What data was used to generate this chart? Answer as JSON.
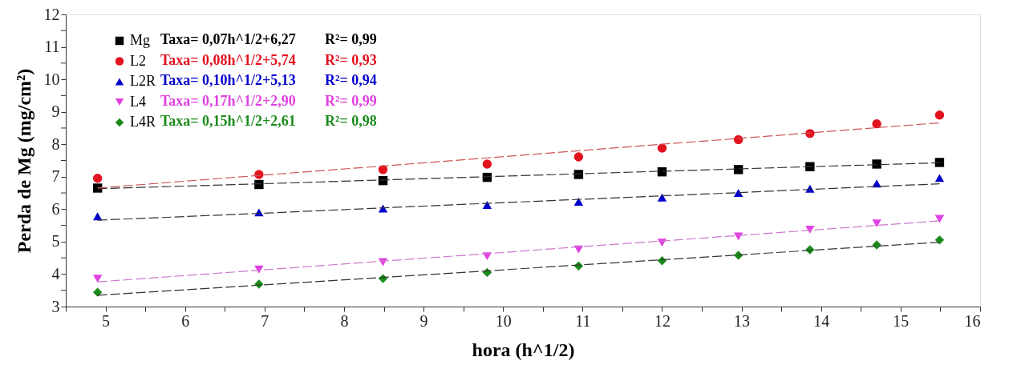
{
  "chart_data": {
    "type": "scatter",
    "xlabel": "hora (h^1/2)",
    "ylabel": "Perda de Mg (mg/cm²)",
    "x": [
      4.9,
      6.93,
      8.49,
      9.8,
      10.95,
      12.0,
      12.96,
      13.86,
      14.7,
      15.49
    ],
    "xlim": [
      4.5,
      16
    ],
    "ylim": [
      3,
      12
    ],
    "xticks": [
      {
        "value": 4.5,
        "label": null
      },
      5,
      {
        "value": 5.5,
        "label": null
      },
      6,
      {
        "value": 6.5,
        "label": null
      },
      7,
      {
        "value": 7.5,
        "label": null
      },
      8,
      {
        "value": 8.5,
        "label": null
      },
      9,
      {
        "value": 9.5,
        "label": null
      },
      10,
      {
        "value": 10.5,
        "label": null
      },
      11,
      {
        "value": 11.5,
        "label": null
      },
      12,
      {
        "value": 12.5,
        "label": null
      },
      13,
      {
        "value": 13.5,
        "label": null
      },
      14,
      {
        "value": 14.5,
        "label": null
      },
      15,
      {
        "value": 15.5,
        "label": null
      },
      16
    ],
    "yticks": [
      3,
      {
        "value": 3.5,
        "label": null
      },
      4,
      {
        "value": 4.5,
        "label": null
      },
      5,
      {
        "value": 5.5,
        "label": null
      },
      6,
      {
        "value": 6.5,
        "label": null
      },
      7,
      {
        "value": 7.5,
        "label": null
      },
      8,
      {
        "value": 8.5,
        "label": null
      },
      9,
      {
        "value": 9.5,
        "label": null
      },
      10,
      {
        "value": 10.5,
        "label": null
      },
      11,
      {
        "value": 11.5,
        "label": null
      },
      12
    ],
    "grid": false,
    "legend": "top left",
    "series": [
      {
        "name": "Mg",
        "color": "#000000",
        "marker": "square",
        "values": [
          6.65,
          6.76,
          6.88,
          6.98,
          7.07,
          7.15,
          7.22,
          7.31,
          7.39,
          7.44
        ]
      },
      {
        "name": "L2",
        "color": "#e3121f",
        "marker": "circle",
        "values": [
          6.95,
          7.07,
          7.22,
          7.39,
          7.61,
          7.88,
          8.14,
          8.33,
          8.63,
          8.9
        ]
      },
      {
        "name": "L2R",
        "color": "#0000cc",
        "marker": "triangle",
        "values": [
          5.78,
          5.9,
          6.02,
          6.13,
          6.23,
          6.36,
          6.5,
          6.63,
          6.79,
          6.96
        ]
      },
      {
        "name": "L4",
        "color": "#e040e0",
        "marker": "triangle-down",
        "values": [
          3.86,
          4.14,
          4.37,
          4.55,
          4.76,
          4.97,
          5.16,
          5.37,
          5.56,
          5.7
        ]
      },
      {
        "name": "L4R",
        "color": "#1a8a1a",
        "marker": "diamond",
        "values": [
          3.44,
          3.69,
          3.86,
          4.05,
          4.25,
          4.41,
          4.58,
          4.75,
          4.9,
          5.05
        ]
      },
      {
        "type": "line",
        "color": "#333333",
        "line_style": "dashed",
        "values": [
          6.63,
          6.78,
          6.9,
          7.0,
          7.09,
          7.17,
          7.24,
          7.31,
          7.37,
          7.43
        ]
      },
      {
        "type": "line",
        "color": "#cc5555",
        "line_style": "dashed",
        "values": [
          6.65,
          7.04,
          7.33,
          7.58,
          7.8,
          8.0,
          8.18,
          8.35,
          8.51,
          8.66
        ]
      },
      {
        "type": "line",
        "color": "#333333",
        "line_style": "dashed",
        "values": [
          5.66,
          5.87,
          6.04,
          6.18,
          6.3,
          6.41,
          6.51,
          6.61,
          6.7,
          6.78
        ]
      },
      {
        "type": "line",
        "color": "#cc77cc",
        "line_style": "dashed",
        "values": [
          3.76,
          4.12,
          4.4,
          4.63,
          4.84,
          5.02,
          5.19,
          5.35,
          5.5,
          5.64
        ]
      },
      {
        "type": "line",
        "color": "#333333",
        "line_style": "dashed",
        "values": [
          3.35,
          3.66,
          3.9,
          4.1,
          4.28,
          4.44,
          4.59,
          4.73,
          4.86,
          4.98
        ]
      }
    ],
    "annotations": [
      "Taxa= 0,07h^1/2+6,27",
      "R²= 0,99",
      "Taxa= 0,08h^1/2+5,74",
      "R²= 0,93",
      "Taxa= 0,10h^1/2+5,13",
      "R²= 0,94",
      "Taxa= 0,17h^1/2+2,90",
      "R²= 0,99",
      "Taxa= 0,15h^1/2+2,61",
      "R²= 0,98"
    ]
  }
}
